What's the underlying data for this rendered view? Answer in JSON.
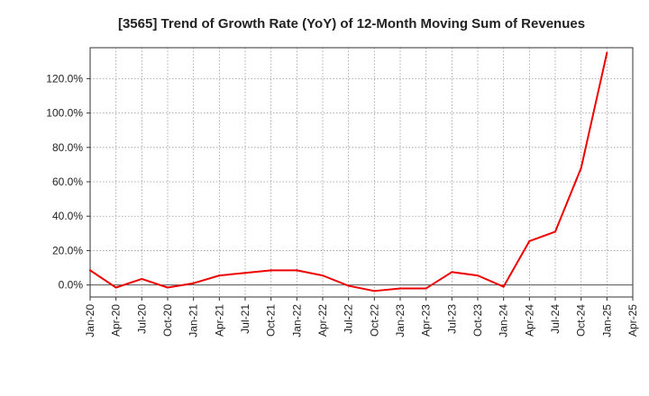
{
  "chart_data": {
    "type": "line",
    "title": "[3565]  Trend of Growth Rate (YoY) of 12-Month Moving Sum of Revenues",
    "xlabel": "",
    "ylabel": "",
    "x_tick_labels": [
      "Jan-20",
      "Apr-20",
      "Jul-20",
      "Oct-20",
      "Jan-21",
      "Apr-21",
      "Jul-21",
      "Oct-21",
      "Jan-22",
      "Apr-22",
      "Jul-22",
      "Oct-22",
      "Jan-23",
      "Apr-23",
      "Jul-23",
      "Oct-23",
      "Jan-24",
      "Apr-24",
      "Jul-24",
      "Oct-24",
      "Jan-25",
      "Apr-25"
    ],
    "y_tick_values": [
      0,
      20,
      40,
      60,
      80,
      100,
      120
    ],
    "y_tick_labels": [
      "0.0%",
      "20.0%",
      "40.0%",
      "60.0%",
      "80.0%",
      "100.0%",
      "120.0%"
    ],
    "ylim": [
      -7,
      138
    ],
    "grid": true,
    "series": [
      {
        "color": "#ee0000",
        "x": [
          "Jan-20",
          "Apr-20",
          "Jul-20",
          "Oct-20",
          "Jan-21",
          "Apr-21",
          "Jul-21",
          "Oct-21",
          "Jan-22",
          "Apr-22",
          "Jul-22",
          "Oct-22",
          "Jan-23",
          "Apr-23",
          "Jul-23",
          "Oct-23",
          "Jan-24",
          "Apr-24",
          "Jul-24",
          "Oct-24",
          "Jan-25"
        ],
        "values": [
          8.5,
          -1.5,
          3.5,
          -1.5,
          1.0,
          5.5,
          7.0,
          8.5,
          8.5,
          5.5,
          -0.5,
          -3.5,
          -2.0,
          -2.0,
          7.5,
          5.5,
          -1.0,
          25.5,
          31.0,
          68.0,
          135.0
        ]
      }
    ]
  }
}
